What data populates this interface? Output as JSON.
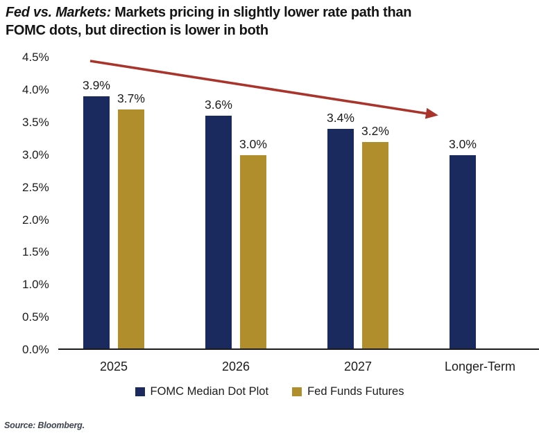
{
  "title": {
    "prefix": "Fed vs. Markets:",
    "line1": "Markets pricing in slightly lower rate path than",
    "line2": "FOMC dots, but direction is lower in both"
  },
  "chart_data": {
    "type": "bar",
    "categories": [
      "2025",
      "2026",
      "2027",
      "Longer-Term"
    ],
    "series": [
      {
        "name": "FOMC Median Dot Plot",
        "color": "#1B2A5E",
        "values": [
          3.9,
          3.6,
          3.4,
          3.0
        ]
      },
      {
        "name": "Fed Funds Futures",
        "color": "#B08E2B",
        "values": [
          3.7,
          3.0,
          3.2,
          null
        ]
      }
    ],
    "value_labels": [
      [
        "3.9%",
        "3.7%"
      ],
      [
        "3.6%",
        "3.0%"
      ],
      [
        "3.4%",
        "3.2%"
      ],
      [
        "3.0%",
        null
      ]
    ],
    "yticks": [
      "4.5%",
      "4.0%",
      "3.5%",
      "3.0%",
      "2.5%",
      "2.0%",
      "1.5%",
      "1.0%",
      "0.5%",
      "0.0%"
    ],
    "ylim": [
      0,
      4.5
    ],
    "ytick_step": 0.5,
    "grid": "off",
    "legend_position": "bottom",
    "annotation": {
      "type": "arrow",
      "color": "#A8342C",
      "description": "red downward trend arrow from upper-left to middle-right"
    }
  },
  "source": "Source: Bloomberg."
}
